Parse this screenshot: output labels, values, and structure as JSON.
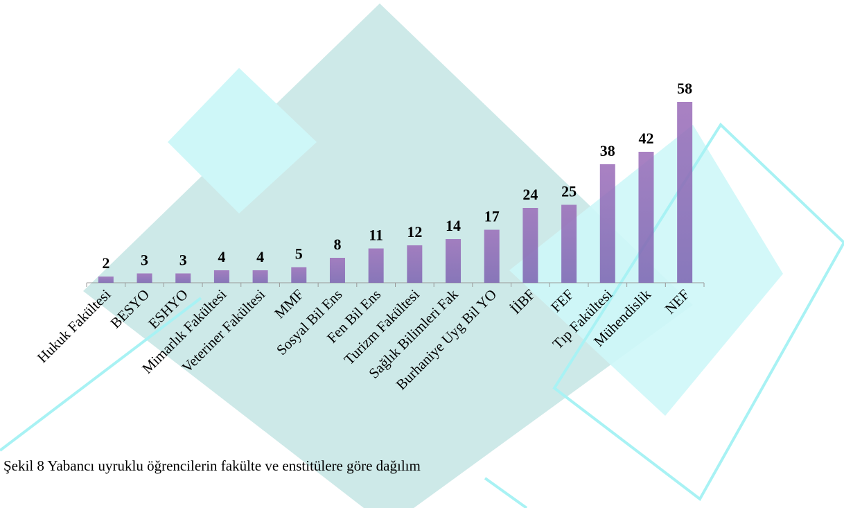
{
  "chart_data": {
    "type": "bar",
    "categories": [
      "Hukuk Fakültesi",
      "BESYO",
      "ESHYO",
      "Mimarlık Fakültesi",
      "Veteriner Fakültesi",
      "MMF",
      "Sosyal Bil Ens",
      "Fen Bil Ens",
      "Turizm Fakültesi",
      "Sağlık Bilimleri Fak",
      "Burhaniye Uyg Bil YO",
      "İİBF",
      "FEF",
      "Tıp Fakültesi",
      "Mühendislik",
      "NEF"
    ],
    "values": [
      2,
      3,
      3,
      4,
      4,
      5,
      8,
      11,
      12,
      14,
      17,
      24,
      25,
      38,
      42,
      58
    ],
    "color": "#8064a2",
    "caption": "Şekil 8 Yabancı uyruklu öğrencilerin fakülte ve enstitülere göre dağılım"
  }
}
